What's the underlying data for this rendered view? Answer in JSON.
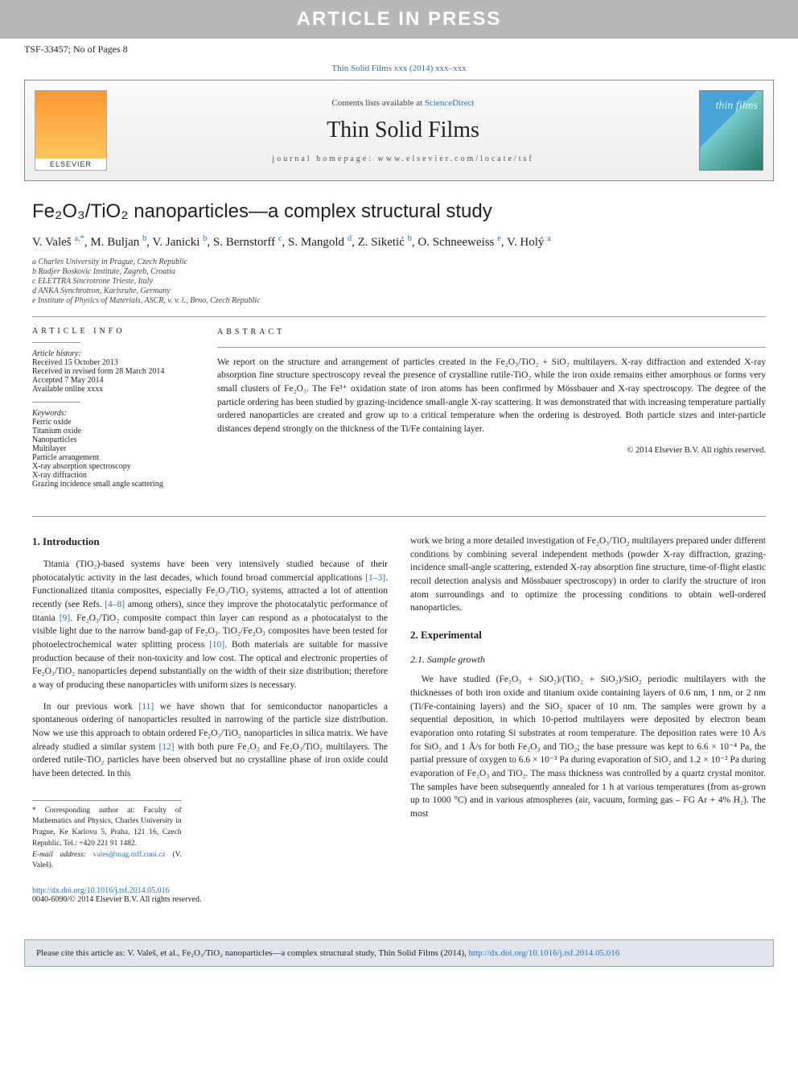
{
  "banner": "ARTICLE IN PRESS",
  "manuscriptRef": "TSF-33457; No of Pages 8",
  "citationLine": "Thin Solid Films xxx (2014) xxx–xxx",
  "journalBox": {
    "contentsPrefix": "Contents lists available at ",
    "contentsLink": "ScienceDirect",
    "title": "Thin Solid Films",
    "homepage": "journal homepage: www.elsevier.com/locate/tsf",
    "publisherLogo": "ELSEVIER",
    "coverText": "thin films"
  },
  "article": {
    "title": "Fe₂O₃/TiO₂ nanoparticles—a complex structural study",
    "authors": "V. Valeš <sup>a,*</sup>, M. Buljan <sup>b</sup>, V. Janicki <sup>b</sup>, S. Bernstorff <sup>c</sup>, S. Mangold <sup>d</sup>, Z. Siketić <sup>b</sup>, O. Schneeweiss <sup>e</sup>, V. Holý <sup>a</sup>",
    "affiliations": [
      "a  Charles University in Prague, Czech Republic",
      "b  Rudjer Boskovic Institute, Zagreb, Croatia",
      "c  ELETTRA Sincrotrone Trieste, Italy",
      "d  ANKA Synchrotron, Karlsruhe, Germany",
      "e  Institute of Physics of Materials, ASCR, v. v. i., Brno, Czech Republic"
    ]
  },
  "infoHeading": "ARTICLE INFO",
  "history": {
    "label": "Article history:",
    "lines": [
      "Received 15 October 2013",
      "Received in revised form 28 March 2014",
      "Accepted 7 May 2014",
      "Available online xxxx"
    ]
  },
  "keywordsLabel": "Keywords:",
  "keywords": [
    "Ferric oxide",
    "Titanium oxide",
    "Nanoparticles",
    "Multilayer",
    "Particle arrangement",
    "X-ray absorption spectroscopy",
    "X-ray diffraction",
    "Grazing incidence small angle scattering"
  ],
  "abstractHeading": "ABSTRACT",
  "abstract": "We report on the structure and arrangement of particles created in the Fe₂O₃/TiO₂ + SiO₂ multilayers. X-ray diffraction and extended X-ray absorption fine structure spectroscopy reveal the presence of crystalline rutile-TiO₂ while the iron oxide remains either amorphous or forms very small clusters of Fe₂O₃. The Fe³⁺ oxidation state of iron atoms has been confirmed by Mössbauer and X-ray spectroscopy. The degree of the particle ordering has been studied by grazing-incidence small-angle X-ray scattering. It was demonstrated that with increasing temperature partially ordered nanoparticles are created and grow up to a critical temperature when the ordering is destroyed. Both particle sizes and inter-particle distances depend strongly on the thickness of the Ti/Fe containing layer.",
  "copyright": "© 2014 Elsevier B.V. All rights reserved.",
  "sections": {
    "introHeading": "1. Introduction",
    "introP1": "Titania (TiO₂)-based systems have been very intensively studied because of their photocatalytic activity in the last decades, which found broad commercial applications [1–3]. Functionalized titania composites, especially Fe₂O₃/TiO₂ systems, attracted a lot of attention recently (see Refs. [4–8] among others), since they improve the photocatalytic performance of titania [9]. Fe₂O₃/TiO₂ composite compact thin layer can respond as a photocatalyst to the visible light due to the narrow band-gap of Fe₂O₃. TiO₂/Fe₂O₃ composites have been tested for photoelectrochemical water splitting process [10]. Both materials are suitable for massive production because of their non-toxicity and low cost. The optical and electronic properties of Fe₂O₃/TiO₂ nanoparticles depend substantially on the width of their size distribution; therefore a way of producing these nanoparticles with uniform sizes is necessary.",
    "introP2": "In our previous work [11] we have shown that for semiconductor nanoparticles a spontaneous ordering of nanoparticles resulted in narrowing of the particle size distribution. Now we use this approach to obtain ordered Fe₂O₃/TiO₂ nanoparticles in silica matrix. We have already studied a similar system [12] with both pure Fe₂O₃ and Fe₂O₃/TiO₂ multilayers. The ordered rutile-TiO₂ particles have been observed but no crystalline phase of iron oxide could have been detected. In this",
    "introP3": "work we bring a more detailed investigation of Fe₂O₃/TiO₂ multilayers prepared under different conditions by combining several independent methods (powder X-ray diffraction, grazing-incidence small-angle scattering, extended X-ray absorption fine structure, time-of-flight elastic recoil detection analysis and Mössbauer spectroscopy) in order to clarify the structure of iron atom surroundings and to optimize the processing conditions to obtain well-ordered nanoparticles.",
    "expHeading": "2. Experimental",
    "growthHeading": "2.1. Sample growth",
    "growthP1": "We have studied (Fe₂O₃ + SiO₂)/(TiO₂ + SiO₂)/SiO₂ periodic multilayers with the thicknesses of both iron oxide and titanium oxide containing layers of 0.6 nm, 1 nm, or 2 nm (Ti/Fe-containing layers) and the SiO₂ spacer of 10 nm. The samples were grown by a sequential deposition, in which 10-period multilayers were deposited by electron beam evaporation onto rotating Si substrates at room temperature. The deposition rates were 10 Å/s for SiO₂ and 1 Å/s for both Fe₂O₃ and TiO₂; the base pressure was kept to 6.6 × 10⁻⁴ Pa, the partial pressure of oxygen to 6.6 × 10⁻³ Pa during evaporation of SiO₂ and 1.2 × 10⁻² Pa during evaporation of Fe₂O₃ and TiO₂. The mass thickness was controlled by a quartz crystal monitor. The samples have been subsequently annealed for 1 h at various temperatures (from as-grown up to 1000 °C) and in various atmospheres (air, vacuum, forming gas – FG Ar + 4% H₂). The most"
  },
  "footnote": {
    "corr": "* Corresponding author at: Faculty of Mathematics and Physics, Charles University in Prague, Ke Karlovu 5, Praha, 121 16, Czech Republic. Tel.: +420 221 91 1482.",
    "emailLabel": "E-mail address: ",
    "email": "vales@mag.mff.cuni.cz",
    "emailSuffix": " (V. Valeš)."
  },
  "doi": {
    "url": "http://dx.doi.org/10.1016/j.tsf.2014.05.016",
    "issn": "0040-6090/© 2014 Elsevier B.V. All rights reserved."
  },
  "citeBox": {
    "prefix": "Please cite this article as: V. Valeš, et al., Fe₂O₃/TiO₂ nanoparticles—a complex structural study, Thin Solid Films (2014), ",
    "link": "http://dx.doi.org/10.1016/j.tsf.2014.05.016"
  },
  "colors": {
    "bannerBg": "#b8b8b8",
    "link": "#2e6eb8",
    "citeBoxBg": "#e2e6ec"
  }
}
